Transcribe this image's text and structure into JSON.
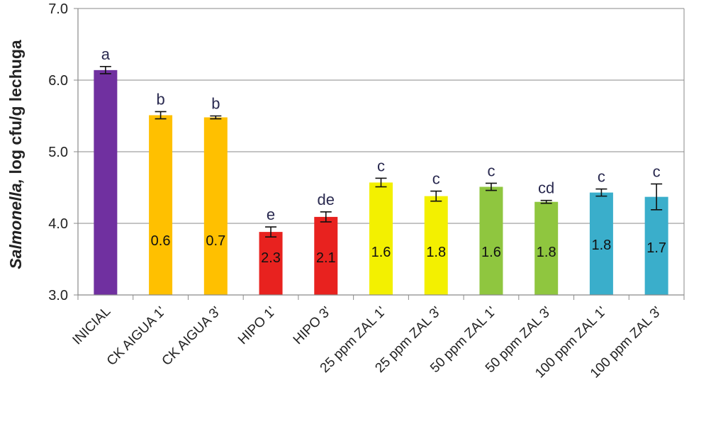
{
  "chart_data": {
    "type": "bar",
    "ylabel_italic": "Salmonella,",
    "ylabel_rest": " log cfu/g lechuga",
    "ylim": [
      3.0,
      7.0
    ],
    "yticks": [
      "3.0",
      "4.0",
      "5.0",
      "6.0",
      "7.0"
    ],
    "grid": true,
    "categories": [
      "INICIAL",
      "CK AIGUA 1'",
      "CK AIGUA 3'",
      "HIPO 1'",
      "HIPO 3'",
      "25 ppm ZAL 1'",
      "25 ppm ZAL 3'",
      "50 ppm ZAL 1'",
      "50 ppm ZAL 3'",
      "100 ppm ZAL 1'",
      "100 ppm ZAL 3'"
    ],
    "values": [
      6.14,
      5.51,
      5.48,
      3.88,
      4.09,
      4.57,
      4.38,
      4.51,
      4.3,
      4.43,
      4.37
    ],
    "errors": [
      0.05,
      0.05,
      0.02,
      0.07,
      0.07,
      0.06,
      0.07,
      0.05,
      0.02,
      0.05,
      0.18
    ],
    "significance": [
      "a",
      "b",
      "b",
      "e",
      "de",
      "c",
      "c",
      "c",
      "cd",
      "c",
      "c"
    ],
    "reductions": [
      "",
      "0.6",
      "0.7",
      "2.3",
      "2.1",
      "1.6",
      "1.8",
      "1.6",
      "1.8",
      "1.8",
      "1.7"
    ],
    "colors": [
      "#7030a0",
      "#ffc000",
      "#ffc000",
      "#e8221f",
      "#e8221f",
      "#f3f000",
      "#f3f000",
      "#8fc63f",
      "#8fc63f",
      "#3aaecb",
      "#3aaecb"
    ]
  }
}
